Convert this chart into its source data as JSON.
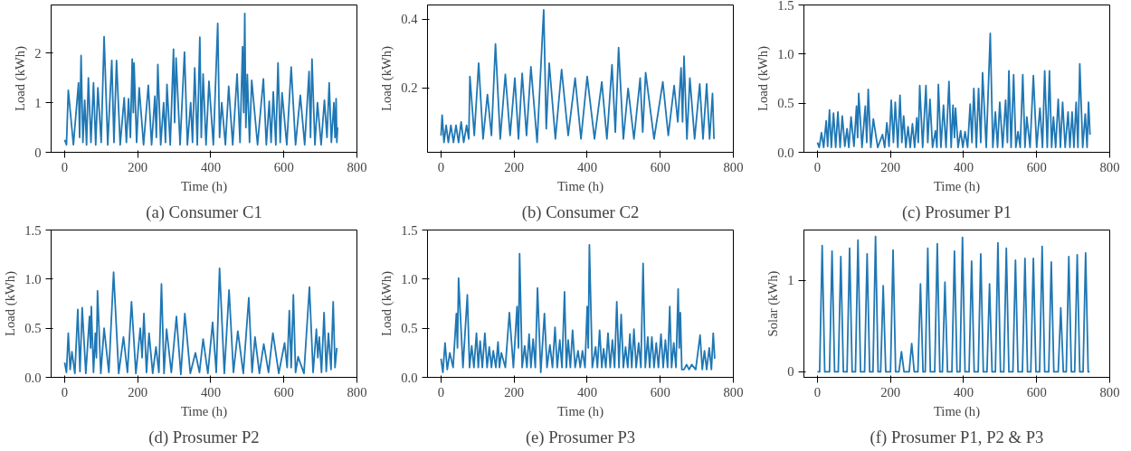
{
  "chart_data": [
    {
      "type": "line",
      "title": "(a) Consumer C1",
      "xlabel": "Time (h)",
      "ylabel": "Load (kWh)",
      "xlim": [
        -37,
        800
      ],
      "ylim": [
        0,
        2.97
      ],
      "xticks": [
        0,
        200,
        400,
        600,
        800
      ],
      "yticks": [
        0,
        1,
        2
      ],
      "x": [
        0,
        5,
        10,
        24,
        38,
        41,
        45,
        50,
        55,
        60,
        65,
        72,
        79,
        85,
        91,
        100,
        108,
        118,
        129,
        135,
        142,
        152,
        163,
        169,
        175,
        180,
        185,
        188,
        190,
        197,
        204,
        216,
        229,
        238,
        247,
        251,
        255,
        263,
        271,
        276,
        280,
        289,
        298,
        301,
        305,
        316,
        328,
        336,
        345,
        350,
        356,
        363,
        370,
        374,
        379,
        387,
        395,
        407,
        419,
        424,
        430,
        440,
        449,
        460,
        472,
        480,
        487,
        490,
        493,
        496,
        500,
        506,
        512,
        528,
        544,
        552,
        560,
        565,
        571,
        578,
        584,
        590,
        595,
        608,
        620,
        632,
        645,
        657,
        669,
        673,
        677,
        685,
        692,
        702,
        711,
        718,
        724,
        730,
        737,
        740,
        743,
        745,
        747
      ],
      "series": [
        {
          "color": "#1f77b4",
          "values": [
            0.25,
            0.15,
            1.25,
            0.15,
            1.4,
            0.3,
            1.95,
            0.2,
            1.05,
            0.15,
            1.5,
            0.2,
            1.4,
            0.15,
            1.3,
            0.2,
            2.33,
            0.15,
            1.85,
            0.2,
            1.85,
            0.15,
            1.1,
            0.2,
            1.08,
            0.3,
            1.88,
            0.8,
            1.8,
            0.2,
            1.3,
            0.15,
            1.35,
            0.15,
            1.13,
            0.3,
            1.77,
            0.15,
            1.0,
            0.2,
            1.37,
            0.15,
            2.08,
            0.6,
            1.9,
            0.15,
            2.02,
            0.15,
            1.0,
            0.2,
            1.7,
            0.15,
            2.32,
            0.3,
            1.58,
            0.15,
            1.43,
            0.15,
            2.6,
            0.3,
            1.0,
            0.15,
            1.33,
            0.15,
            1.58,
            0.2,
            2.13,
            0.8,
            2.8,
            0.5,
            1.57,
            0.2,
            1.45,
            0.15,
            1.48,
            0.15,
            1.03,
            0.2,
            1.22,
            0.15,
            1.8,
            0.2,
            1.2,
            0.15,
            1.72,
            0.15,
            1.15,
            0.15,
            1.63,
            0.3,
            1.88,
            0.15,
            1.0,
            0.15,
            1.05,
            0.3,
            1.4,
            0.2,
            1.0,
            0.3,
            1.08,
            0.2,
            0.5
          ]
        }
      ]
    },
    {
      "type": "line",
      "title": "(b) Consumer C2",
      "xlabel": "Time (h)",
      "ylabel": "Load (kWh)",
      "xlim": [
        -37,
        800
      ],
      "ylim": [
        0.011,
        0.442
      ],
      "xticks": [
        0,
        200,
        400,
        600,
        800
      ],
      "yticks": [
        0.2,
        0.4
      ],
      "x": [
        0,
        3,
        8,
        14,
        20,
        27,
        34,
        41,
        48,
        55,
        62,
        70,
        76,
        79,
        91,
        103,
        115,
        127,
        138,
        149,
        162,
        176,
        189,
        202,
        212,
        222,
        234,
        246,
        263,
        281,
        288,
        296,
        313,
        330,
        348,
        367,
        383,
        400,
        420,
        440,
        454,
        468,
        477,
        486,
        499,
        512,
        528,
        545,
        552,
        560,
        583,
        607,
        622,
        638,
        648,
        657,
        661,
        665,
        673,
        681,
        694,
        708,
        717,
        727,
        735,
        743,
        747
      ],
      "series": [
        {
          "color": "#1f77b4",
          "values": [
            0.06,
            0.12,
            0.04,
            0.09,
            0.04,
            0.09,
            0.04,
            0.09,
            0.04,
            0.1,
            0.04,
            0.09,
            0.05,
            0.233,
            0.06,
            0.272,
            0.05,
            0.18,
            0.06,
            0.328,
            0.05,
            0.239,
            0.06,
            0.228,
            0.05,
            0.242,
            0.06,
            0.261,
            0.04,
            0.428,
            0.08,
            0.272,
            0.05,
            0.253,
            0.06,
            0.228,
            0.05,
            0.233,
            0.05,
            0.217,
            0.05,
            0.267,
            0.07,
            0.317,
            0.05,
            0.198,
            0.05,
            0.228,
            0.07,
            0.244,
            0.05,
            0.217,
            0.06,
            0.206,
            0.1,
            0.258,
            0.1,
            0.292,
            0.05,
            0.228,
            0.05,
            0.211,
            0.05,
            0.211,
            0.05,
            0.183,
            0.05
          ]
        }
      ]
    },
    {
      "type": "line",
      "title": "(c) Prosumer P1",
      "xlabel": "Time (h)",
      "ylabel": "Load (kWh)",
      "xlim": [
        -37,
        800
      ],
      "ylim": [
        0,
        1.5
      ],
      "xticks": [
        0,
        200,
        400,
        600,
        800
      ],
      "yticks": [
        {
          "value": 0,
          "label": "0.0"
        },
        {
          "value": 0.5,
          "label": "0.5"
        },
        {
          "value": 1,
          "label": "1.0"
        },
        {
          "value": 1.5,
          "label": "1.5"
        }
      ],
      "x": [
        0,
        5,
        11,
        17,
        24,
        28,
        33,
        38,
        44,
        50,
        56,
        62,
        68,
        75,
        81,
        86,
        92,
        100,
        107,
        110,
        113,
        122,
        131,
        135,
        139,
        146,
        153,
        165,
        178,
        184,
        190,
        196,
        202,
        208,
        213,
        220,
        226,
        231,
        236,
        242,
        248,
        254,
        260,
        266,
        272,
        276,
        280,
        288,
        297,
        302,
        308,
        315,
        323,
        327,
        331,
        338,
        345,
        352,
        360,
        366,
        371,
        375,
        378,
        385,
        392,
        398,
        404,
        411,
        418,
        423,
        428,
        435,
        441,
        447,
        452,
        462,
        473,
        480,
        487,
        493,
        499,
        507,
        515,
        520,
        524,
        530,
        537,
        543,
        549,
        555,
        562,
        568,
        573,
        582,
        591,
        600,
        609,
        616,
        622,
        629,
        635,
        641,
        646,
        652,
        659,
        665,
        671,
        678,
        686,
        691,
        697,
        702,
        708,
        713,
        718,
        726,
        733,
        738,
        742,
        746
      ],
      "series": [
        {
          "color": "#1f77b4",
          "values": [
            0.1,
            0.05,
            0.2,
            0.05,
            0.32,
            0.06,
            0.43,
            0.05,
            0.4,
            0.05,
            0.41,
            0.05,
            0.37,
            0.06,
            0.24,
            0.05,
            0.36,
            0.06,
            0.47,
            0.15,
            0.6,
            0.05,
            0.47,
            0.1,
            0.64,
            0.05,
            0.34,
            0.05,
            0.18,
            0.05,
            0.3,
            0.06,
            0.53,
            0.1,
            0.51,
            0.05,
            0.58,
            0.1,
            0.37,
            0.05,
            0.26,
            0.05,
            0.29,
            0.05,
            0.35,
            0.1,
            0.68,
            0.05,
            0.68,
            0.1,
            0.54,
            0.05,
            0.22,
            0.05,
            0.69,
            0.05,
            0.48,
            0.05,
            0.72,
            0.05,
            0.48,
            0.15,
            0.45,
            0.05,
            0.22,
            0.05,
            0.21,
            0.05,
            0.49,
            0.1,
            0.65,
            0.05,
            0.65,
            0.1,
            0.81,
            0.05,
            1.21,
            0.05,
            0.41,
            0.05,
            0.51,
            0.05,
            0.53,
            0.1,
            0.83,
            0.05,
            0.79,
            0.05,
            0.21,
            0.05,
            0.79,
            0.05,
            0.36,
            0.05,
            0.78,
            0.05,
            0.45,
            0.05,
            0.83,
            0.05,
            0.83,
            0.05,
            0.36,
            0.05,
            0.54,
            0.05,
            0.51,
            0.05,
            0.41,
            0.05,
            0.41,
            0.05,
            0.51,
            0.05,
            0.9,
            0.05,
            0.39,
            0.05,
            0.51,
            0.18
          ]
        }
      ]
    },
    {
      "type": "line",
      "title": "(d) Prosumer P2",
      "xlabel": "Time (h)",
      "ylabel": "Load (kWh)",
      "xlim": [
        -37,
        800
      ],
      "ylim": [
        0,
        1.5
      ],
      "xticks": [
        0,
        200,
        400,
        600,
        800
      ],
      "yticks": [
        {
          "value": 0,
          "label": "0.0"
        },
        {
          "value": 0.5,
          "label": "0.5"
        },
        {
          "value": 1,
          "label": "1.0"
        },
        {
          "value": 1.5,
          "label": "1.5"
        }
      ],
      "x": [
        0,
        5,
        10,
        15,
        20,
        28,
        36,
        42,
        48,
        58,
        68,
        71,
        73,
        79,
        84,
        87,
        90,
        99,
        108,
        121,
        134,
        148,
        161,
        172,
        183,
        195,
        207,
        212,
        217,
        224,
        231,
        241,
        250,
        258,
        265,
        272,
        279,
        292,
        306,
        318,
        329,
        344,
        358,
        369,
        379,
        392,
        405,
        415,
        424,
        437,
        450,
        462,
        474,
        489,
        504,
        513,
        521,
        533,
        545,
        558,
        570,
        586,
        602,
        609,
        615,
        620,
        626,
        632,
        639,
        655,
        670,
        680,
        689,
        693,
        697,
        703,
        710,
        716,
        722,
        729,
        735,
        740,
        745
      ],
      "series": [
        {
          "color": "#1f77b4",
          "values": [
            0.15,
            0.05,
            0.45,
            0.08,
            0.26,
            0.04,
            0.69,
            0.06,
            0.71,
            0.04,
            0.62,
            0.3,
            0.72,
            0.05,
            0.45,
            0.2,
            0.88,
            0.04,
            0.5,
            0.05,
            1.07,
            0.04,
            0.41,
            0.05,
            0.77,
            0.04,
            0.5,
            0.2,
            0.65,
            0.05,
            0.45,
            0.04,
            0.31,
            0.05,
            0.95,
            0.04,
            0.49,
            0.05,
            0.62,
            0.03,
            0.65,
            0.04,
            0.25,
            0.05,
            0.39,
            0.04,
            0.56,
            0.05,
            1.11,
            0.04,
            0.89,
            0.05,
            0.47,
            0.04,
            0.81,
            0.05,
            0.41,
            0.04,
            0.34,
            0.05,
            0.45,
            0.04,
            0.35,
            0.1,
            0.68,
            0.1,
            0.84,
            0.05,
            0.21,
            0.04,
            0.92,
            0.05,
            0.49,
            0.2,
            0.41,
            0.05,
            0.66,
            0.06,
            0.45,
            0.08,
            0.77,
            0.1,
            0.3
          ]
        }
      ]
    },
    {
      "type": "line",
      "title": "(e) Prosumer P3",
      "xlabel": "Time (h)",
      "ylabel": "Load (kWh)",
      "xlim": [
        -37,
        800
      ],
      "ylim": [
        0,
        1.5
      ],
      "xticks": [
        0,
        200,
        400,
        600,
        800
      ],
      "yticks": [
        {
          "value": 0,
          "label": "0.0"
        },
        {
          "value": 0.5,
          "label": "0.5"
        },
        {
          "value": 1,
          "label": "1.0"
        },
        {
          "value": 1.5,
          "label": "1.5"
        }
      ],
      "x": [
        0,
        5,
        11,
        17,
        24,
        33,
        42,
        45,
        48,
        60,
        72,
        78,
        84,
        90,
        97,
        102,
        107,
        113,
        120,
        126,
        132,
        138,
        143,
        150,
        156,
        160,
        165,
        176,
        187,
        198,
        208,
        212,
        215,
        222,
        229,
        235,
        241,
        246,
        252,
        258,
        264,
        273,
        283,
        290,
        298,
        305,
        312,
        318,
        325,
        331,
        338,
        343,
        348,
        354,
        360,
        367,
        375,
        381,
        387,
        394,
        400,
        403,
        406,
        414,
        423,
        428,
        434,
        440,
        445,
        451,
        457,
        463,
        469,
        475,
        481,
        487,
        493,
        499,
        505,
        511,
        517,
        522,
        528,
        534,
        541,
        547,
        553,
        559,
        566,
        571,
        577,
        583,
        589,
        595,
        602,
        608,
        614,
        620,
        626,
        631,
        637,
        643,
        649,
        652,
        655,
        659,
        665,
        672,
        679,
        686,
        697,
        709,
        715,
        721,
        727,
        734,
        740,
        745,
        749
      ],
      "series": [
        {
          "color": "#1f77b4",
          "values": [
            0.19,
            0.05,
            0.35,
            0.08,
            0.25,
            0.1,
            0.65,
            0.3,
            1.01,
            0.1,
            0.84,
            0.1,
            0.32,
            0.1,
            0.45,
            0.1,
            0.37,
            0.1,
            0.45,
            0.1,
            0.31,
            0.1,
            0.27,
            0.1,
            0.36,
            0.1,
            0.25,
            0.1,
            0.66,
            0.1,
            0.72,
            0.3,
            1.26,
            0.1,
            0.32,
            0.1,
            0.44,
            0.1,
            0.39,
            0.1,
            0.91,
            0.05,
            0.65,
            0.1,
            0.33,
            0.1,
            0.51,
            0.1,
            0.38,
            0.1,
            0.87,
            0.1,
            0.38,
            0.1,
            0.48,
            0.1,
            0.27,
            0.1,
            0.27,
            0.1,
            0.72,
            0.3,
            1.35,
            0.1,
            0.31,
            0.1,
            0.48,
            0.1,
            0.29,
            0.1,
            0.45,
            0.1,
            0.38,
            0.1,
            0.77,
            0.1,
            0.64,
            0.1,
            0.31,
            0.1,
            0.44,
            0.1,
            0.49,
            0.1,
            0.35,
            0.1,
            1.16,
            0.1,
            0.41,
            0.1,
            0.41,
            0.1,
            0.35,
            0.1,
            0.44,
            0.1,
            0.38,
            0.1,
            0.72,
            0.1,
            0.35,
            0.1,
            0.9,
            0.3,
            0.66,
            0.08,
            0.08,
            0.13,
            0.08,
            0.13,
            0.08,
            0.43,
            0.08,
            0.27,
            0.08,
            0.3,
            0.08,
            0.45,
            0.19
          ]
        }
      ]
    },
    {
      "type": "line",
      "title": "(f) Prosumer P1, P2 & P3",
      "xlabel": "Time (h)",
      "ylabel": "Solar (kWh)",
      "xlim": [
        -37,
        800
      ],
      "ylim": [
        -0.06,
        1.55
      ],
      "xticks": [
        0,
        200,
        400,
        600,
        800
      ],
      "yticks": [
        0,
        1
      ],
      "x": [
        0,
        6,
        13,
        20,
        33,
        40,
        47,
        57,
        64,
        71,
        81,
        88,
        95,
        104,
        111,
        118,
        129,
        136,
        143,
        152,
        159,
        166,
        173,
        180,
        187,
        200,
        207,
        214,
        223,
        230,
        237,
        251,
        258,
        265,
        275,
        282,
        289,
        295,
        302,
        309,
        321,
        328,
        335,
        342,
        349,
        356,
        368,
        375,
        382,
        390,
        397,
        404,
        415,
        422,
        429,
        440,
        447,
        454,
        464,
        471,
        478,
        487,
        494,
        501,
        510,
        517,
        524,
        535,
        542,
        549,
        561,
        568,
        575,
        584,
        591,
        598,
        608,
        615,
        622,
        633,
        640,
        647,
        659,
        666,
        673,
        681,
        688,
        695,
        704,
        711,
        718,
        727,
        734,
        741,
        745
      ],
      "series": [
        {
          "color": "#1f77b4",
          "values": [
            0,
            0,
            1.38,
            0,
            0,
            1.32,
            0,
            0,
            1.26,
            0,
            0,
            1.35,
            0,
            0,
            1.44,
            0,
            0,
            1.29,
            0,
            0,
            1.48,
            0,
            0,
            0.94,
            0,
            0,
            1.33,
            0,
            0,
            0.22,
            0,
            0,
            0.31,
            0,
            0,
            0.96,
            0,
            0,
            1.35,
            0,
            0,
            1.4,
            0,
            0,
            0.98,
            0,
            0,
            1.32,
            0,
            0,
            1.47,
            0,
            0,
            1.21,
            0,
            0,
            1.29,
            0,
            0,
            0.96,
            0,
            0,
            1.41,
            0,
            0,
            1.35,
            0,
            0,
            1.22,
            0,
            0,
            1.24,
            0,
            0,
            1.24,
            0,
            0,
            1.37,
            0,
            0,
            1.2,
            0,
            0,
            0.7,
            0,
            0,
            1.26,
            0,
            0,
            1.28,
            0,
            0,
            1.3,
            0,
            0
          ]
        }
      ]
    }
  ]
}
